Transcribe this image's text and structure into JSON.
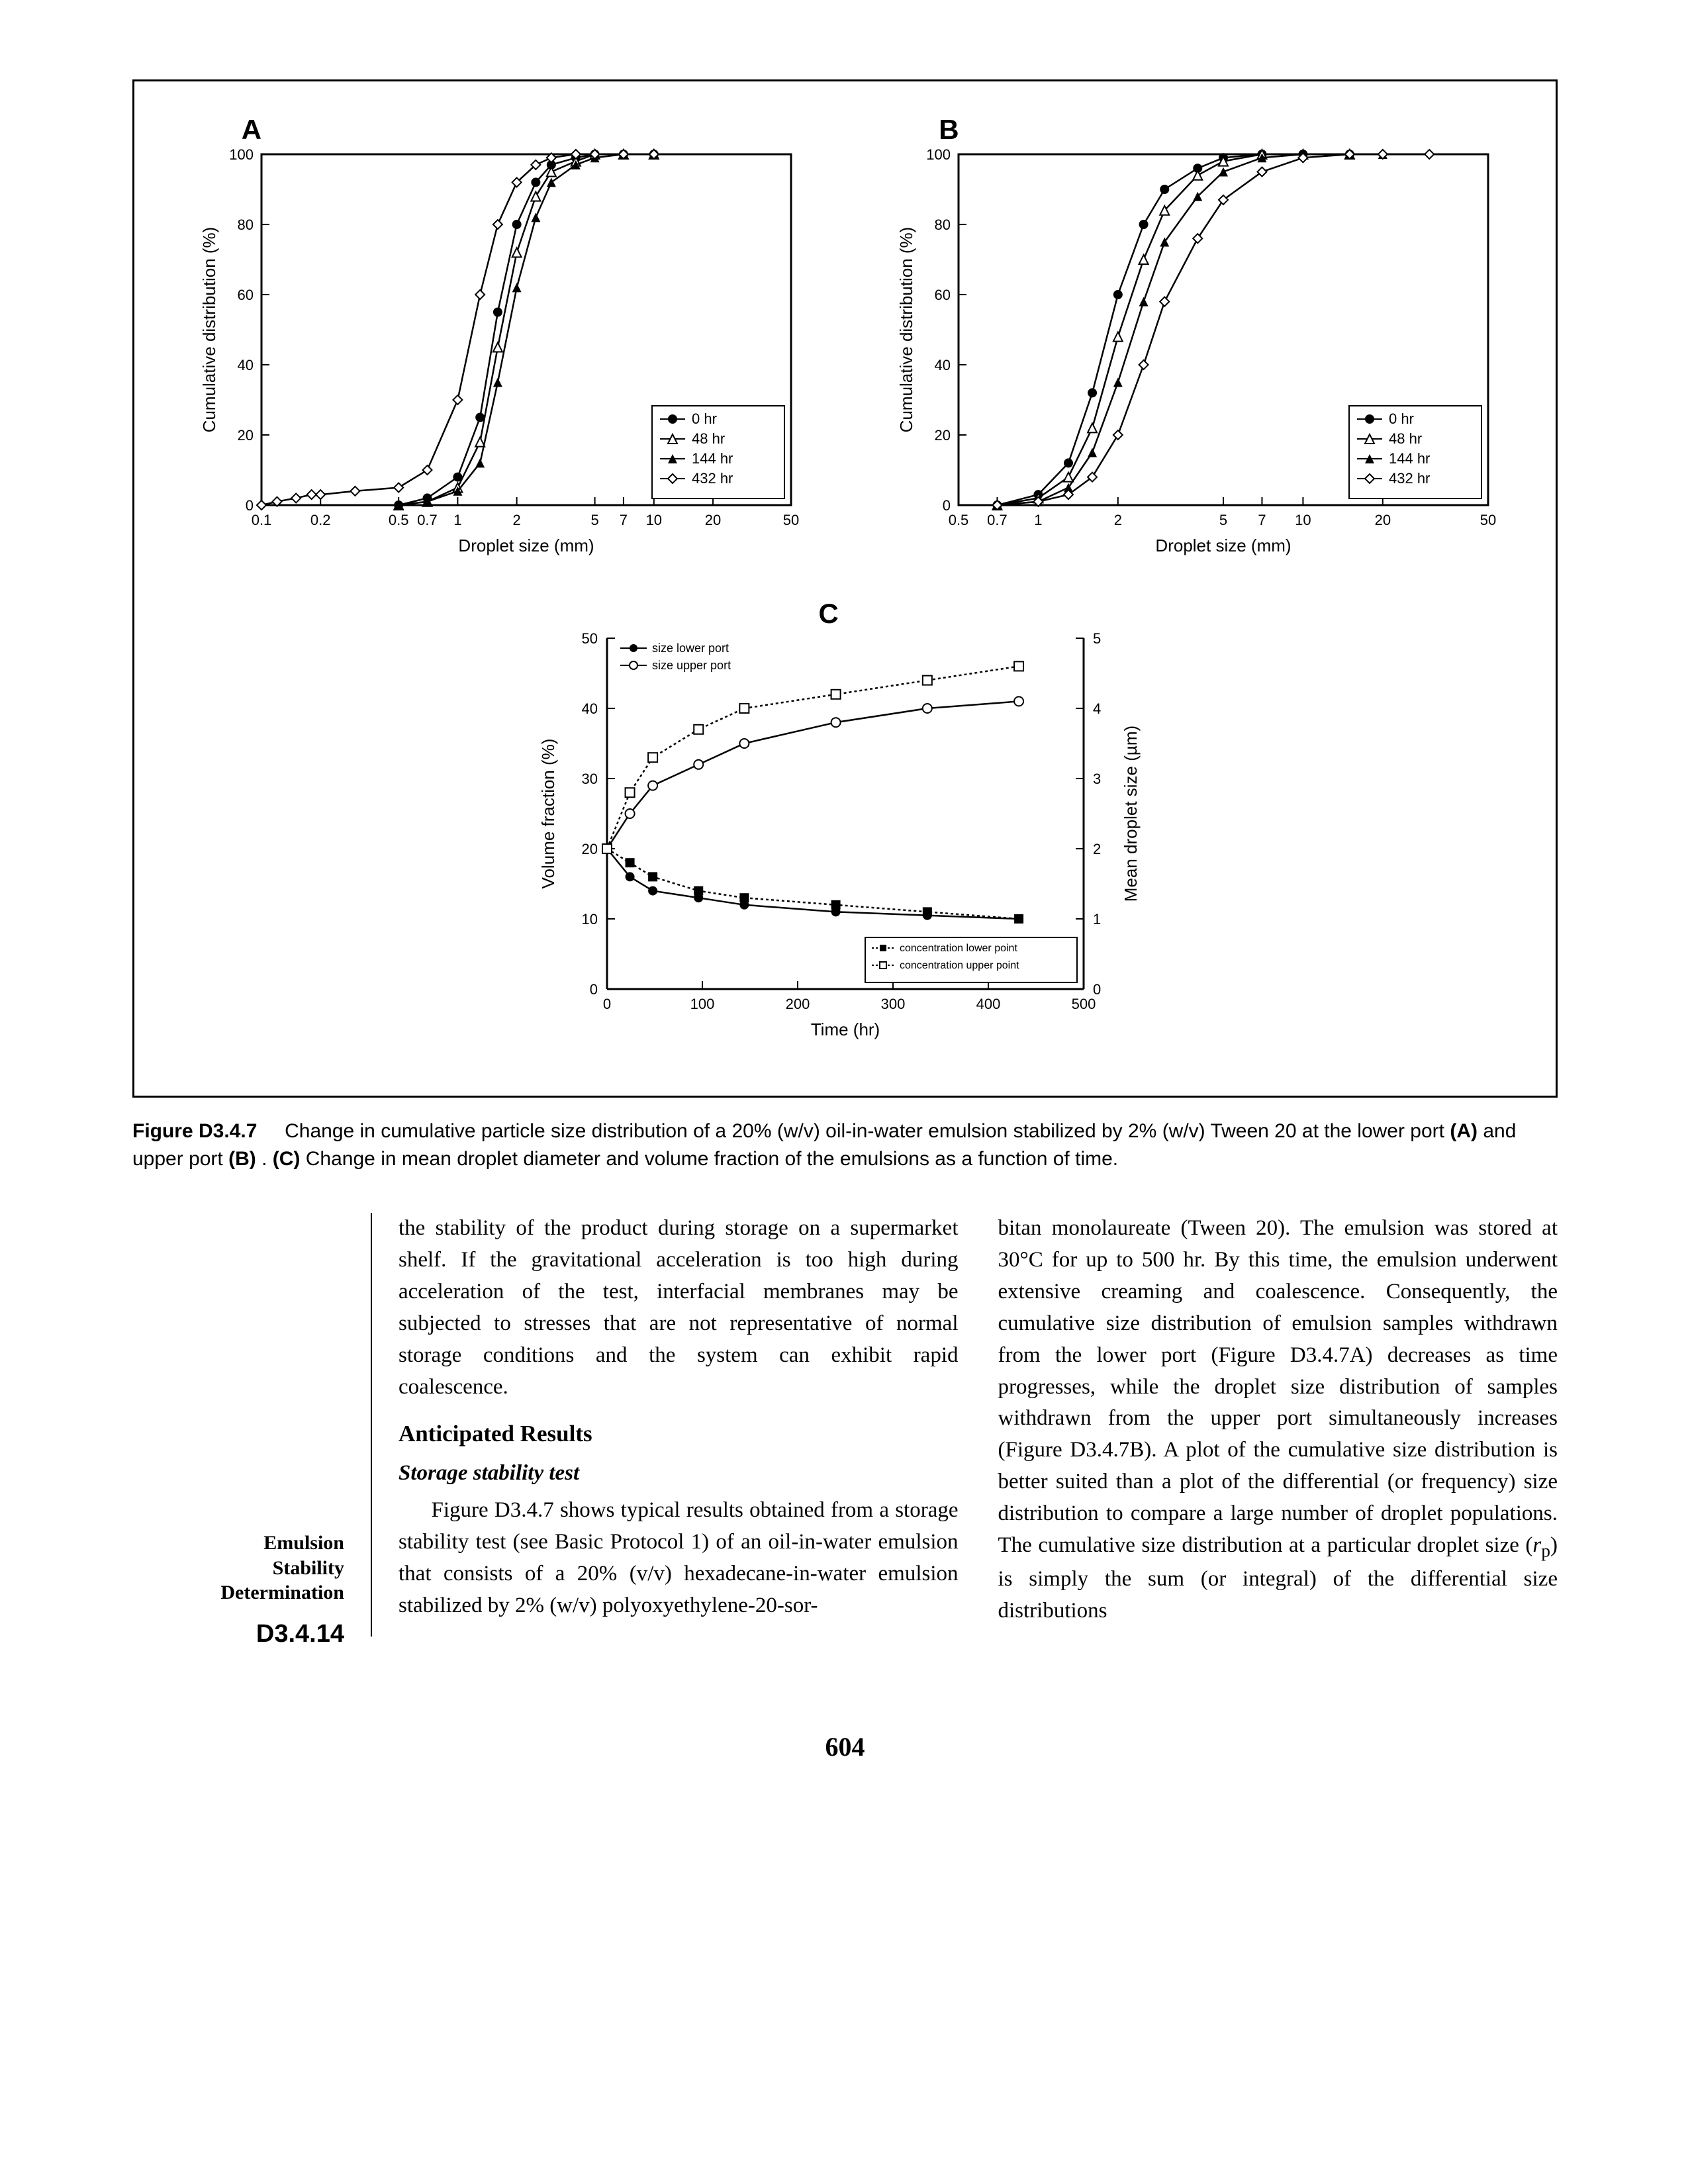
{
  "figure": {
    "panelA": {
      "label": "A",
      "type": "line",
      "xlabel": "Droplet size (mm)",
      "ylabel": "Cumulative distribution (%)",
      "xscale": "log",
      "xlim": [
        0.1,
        50
      ],
      "ylim": [
        0,
        100
      ],
      "xticks": [
        0.1,
        0.2,
        0.5,
        0.7,
        1,
        2,
        5,
        7,
        10,
        20,
        50
      ],
      "yticks": [
        0,
        20,
        40,
        60,
        80,
        100
      ],
      "label_fontsize": 26,
      "tick_fontsize": 22,
      "line_color": "#000000",
      "bg": "#ffffff",
      "legend": [
        {
          "label": "0 hr",
          "marker": "filled-circle"
        },
        {
          "label": "48 hr",
          "marker": "open-triangle"
        },
        {
          "label": "144 hr",
          "marker": "filled-triangle"
        },
        {
          "label": "432 hr",
          "marker": "open-diamond"
        }
      ],
      "series": {
        "0hr": {
          "x": [
            0.5,
            0.7,
            1,
            1.3,
            1.6,
            2,
            2.5,
            3,
            4,
            5,
            7,
            10
          ],
          "y": [
            0,
            2,
            8,
            25,
            55,
            80,
            92,
            97,
            99,
            100,
            100,
            100
          ],
          "marker": "filled-circle"
        },
        "48hr": {
          "x": [
            0.5,
            0.7,
            1,
            1.3,
            1.6,
            2,
            2.5,
            3,
            4,
            5,
            7,
            10
          ],
          "y": [
            0,
            1,
            5,
            18,
            45,
            72,
            88,
            95,
            98,
            100,
            100,
            100
          ],
          "marker": "open-triangle"
        },
        "144hr": {
          "x": [
            0.5,
            0.7,
            1,
            1.3,
            1.6,
            2,
            2.5,
            3,
            4,
            5,
            7,
            10
          ],
          "y": [
            0,
            1,
            4,
            12,
            35,
            62,
            82,
            92,
            97,
            99,
            100,
            100
          ],
          "marker": "filled-triangle"
        },
        "432hr": {
          "x": [
            0.1,
            0.12,
            0.15,
            0.18,
            0.2,
            0.3,
            0.5,
            0.7,
            1,
            1.3,
            1.6,
            2,
            2.5,
            3,
            4,
            5,
            7,
            10
          ],
          "y": [
            0,
            1,
            2,
            3,
            3,
            4,
            5,
            10,
            30,
            60,
            80,
            92,
            97,
            99,
            100,
            100,
            100,
            100
          ],
          "marker": "open-diamond"
        }
      }
    },
    "panelB": {
      "label": "B",
      "type": "line",
      "xlabel": "Droplet size (mm)",
      "ylabel": "Cumulative distribution (%)",
      "xscale": "log",
      "xlim": [
        0.5,
        50
      ],
      "ylim": [
        0,
        100
      ],
      "xticks": [
        0.5,
        0.7,
        1,
        2,
        5,
        7,
        10,
        20,
        50
      ],
      "yticks": [
        0,
        20,
        40,
        60,
        80,
        100
      ],
      "label_fontsize": 26,
      "tick_fontsize": 22,
      "line_color": "#000000",
      "bg": "#ffffff",
      "legend": [
        {
          "label": "0 hr",
          "marker": "filled-circle"
        },
        {
          "label": "48 hr",
          "marker": "open-triangle"
        },
        {
          "label": "144 hr",
          "marker": "filled-triangle"
        },
        {
          "label": "432 hr",
          "marker": "open-diamond"
        }
      ],
      "series": {
        "0hr": {
          "x": [
            0.7,
            1,
            1.3,
            1.6,
            2,
            2.5,
            3,
            4,
            5,
            7,
            10,
            15
          ],
          "y": [
            0,
            3,
            12,
            32,
            60,
            80,
            90,
            96,
            99,
            100,
            100,
            100
          ],
          "marker": "filled-circle"
        },
        "48hr": {
          "x": [
            0.7,
            1,
            1.3,
            1.6,
            2,
            2.5,
            3,
            4,
            5,
            7,
            10,
            15
          ],
          "y": [
            0,
            2,
            8,
            22,
            48,
            70,
            84,
            94,
            98,
            100,
            100,
            100
          ],
          "marker": "open-triangle"
        },
        "144hr": {
          "x": [
            0.7,
            1,
            1.3,
            1.6,
            2,
            2.5,
            3,
            4,
            5,
            7,
            10,
            15,
            20
          ],
          "y": [
            0,
            1,
            5,
            15,
            35,
            58,
            75,
            88,
            95,
            99,
            100,
            100,
            100
          ],
          "marker": "filled-triangle"
        },
        "432hr": {
          "x": [
            0.7,
            1,
            1.3,
            1.6,
            2,
            2.5,
            3,
            4,
            5,
            7,
            10,
            15,
            20,
            30
          ],
          "y": [
            0,
            1,
            3,
            8,
            20,
            40,
            58,
            76,
            87,
            95,
            99,
            100,
            100,
            100
          ],
          "marker": "open-diamond"
        }
      }
    },
    "panelC": {
      "label": "C",
      "type": "dual-axis-line",
      "xlabel": "Time (hr)",
      "ylabel_left": "Volume fraction (%)",
      "ylabel_right": "Mean droplet size (µm)",
      "xlim": [
        0,
        500
      ],
      "ylim_left": [
        0,
        50
      ],
      "ylim_right": [
        0,
        5
      ],
      "xticks": [
        0,
        100,
        200,
        300,
        400,
        500
      ],
      "yticks_left": [
        0,
        10,
        20,
        30,
        40,
        50
      ],
      "yticks_right": [
        0,
        1,
        2,
        3,
        4,
        5
      ],
      "label_fontsize": 26,
      "tick_fontsize": 22,
      "line_color": "#000000",
      "bg": "#ffffff",
      "legend_top": [
        {
          "label": "size lower port",
          "marker": "filled-circle",
          "line": "solid"
        },
        {
          "label": "size upper port",
          "marker": "open-circle",
          "line": "solid"
        }
      ],
      "legend_bottom": [
        {
          "label": "concentration lower point",
          "marker": "filled-square",
          "line": "dotted"
        },
        {
          "label": "concentration upper point",
          "marker": "open-square",
          "line": "dotted"
        }
      ],
      "series": {
        "size_lower": {
          "axis": "right",
          "x": [
            0,
            24,
            48,
            96,
            144,
            240,
            336,
            432
          ],
          "y": [
            2.0,
            1.6,
            1.4,
            1.3,
            1.2,
            1.1,
            1.05,
            1.0
          ],
          "marker": "filled-circle",
          "dash": "none"
        },
        "size_upper": {
          "axis": "right",
          "x": [
            0,
            24,
            48,
            96,
            144,
            240,
            336,
            432
          ],
          "y": [
            2.0,
            2.5,
            2.9,
            3.2,
            3.5,
            3.8,
            4.0,
            4.1
          ],
          "marker": "open-circle",
          "dash": "none"
        },
        "conc_lower": {
          "axis": "left",
          "x": [
            0,
            24,
            48,
            96,
            144,
            240,
            336,
            432
          ],
          "y": [
            20,
            18,
            16,
            14,
            13,
            12,
            11,
            10
          ],
          "marker": "filled-square",
          "dash": "4,4"
        },
        "conc_upper": {
          "axis": "left",
          "x": [
            0,
            24,
            48,
            96,
            144,
            240,
            336,
            432
          ],
          "y": [
            20,
            28,
            33,
            37,
            40,
            42,
            44,
            46
          ],
          "marker": "open-square",
          "dash": "4,4"
        }
      }
    }
  },
  "caption": {
    "label": "Figure D3.4.7",
    "text_before_A": "Change in cumulative particle size distribution of a 20% (w/v) oil-in-water emulsion stabilized by 2% (w/v) Tween 20 at the lower port ",
    "A": "(A)",
    "mid1": " and upper port ",
    "B": "(B)",
    "mid2": ". ",
    "C": "(C)",
    "after_C": " Change in mean droplet diameter and volume fraction of the emulsions as a function of time."
  },
  "margin": {
    "line1": "Emulsion",
    "line2": "Stability",
    "line3": "Determination",
    "pageid": "D3.4.14"
  },
  "body": {
    "p1": "the stability of the product during storage on a supermarket shelf. If the gravitational acceleration is too high during acceleration of the test, interfacial membranes may be subjected to stresses that are not representative of normal storage conditions and the system can exhibit rapid coalescence.",
    "h_anticipated": "Anticipated Results",
    "h_storage": "Storage stability test",
    "p2": "Figure D3.4.7 shows typical results obtained from a storage stability test (see Basic Protocol 1) of an oil-in-water emulsion that consists of a 20% (v/v) hexadecane-in-water emulsion stabilized by 2% (w/v) polyoxyethylene-20-sor-",
    "p3a": "bitan monolaureate (Tween 20). The emulsion was stored at 30°C for up to 500 hr. By this time, the emulsion underwent extensive creaming and coalescence. Consequently, the cumulative size distribution of emulsion samples withdrawn from the lower port (Figure D3.4.7A) decreases as time progresses, while the droplet size distribution of samples withdrawn from the upper port simultaneously increases (Figure D3.4.7B). A plot of the cumulative size distribution is better suited than a plot of the differential (or frequency) size distribution to compare a large number of droplet populations. The cumulative size distribution at a particular droplet size (",
    "rp": "r",
    "rpsub": "p",
    "p3b": ") is simply the sum (or integral) of the differential size distributions"
  },
  "pagenum": "604"
}
